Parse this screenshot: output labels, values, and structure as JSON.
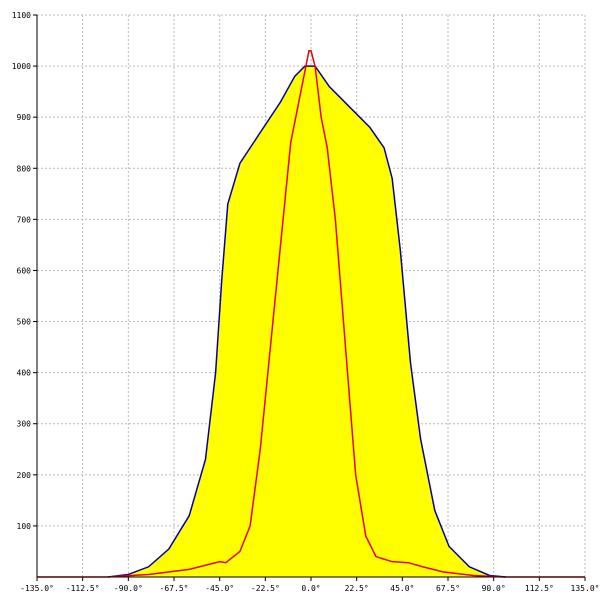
{
  "chart_data": {
    "type": "area-line",
    "xlim": [
      -135,
      135
    ],
    "ylim": [
      0,
      1100
    ],
    "xticks": [
      {
        "value": -135,
        "label": "-135.0°"
      },
      {
        "value": -112.5,
        "label": "-112.5°"
      },
      {
        "value": -90,
        "label": "-90.0°"
      },
      {
        "value": -67.5,
        "label": "-67.5°"
      },
      {
        "value": -45,
        "label": "-45.0°"
      },
      {
        "value": -22.5,
        "label": "-22.5°"
      },
      {
        "value": 0,
        "label": "0.0°"
      },
      {
        "value": 22.5,
        "label": "22.5°"
      },
      {
        "value": 45,
        "label": "45.0°"
      },
      {
        "value": 67.5,
        "label": "67.5°"
      },
      {
        "value": 90,
        "label": "90.0°"
      },
      {
        "value": 112.5,
        "label": "112.5°"
      },
      {
        "value": 135,
        "label": "135.0°"
      }
    ],
    "yticks": [
      100,
      200,
      300,
      400,
      500,
      600,
      700,
      800,
      900,
      1000,
      1100
    ],
    "grid": true,
    "series": [
      {
        "kind": "area",
        "color": "#0000aa",
        "fill": "#ffff00",
        "x": [
          -100,
          -90,
          -80,
          -70,
          -60,
          -52,
          -47,
          -44,
          -41,
          -35,
          -25,
          -15,
          -8,
          -3,
          2,
          9,
          19,
          29,
          36,
          40,
          44,
          49,
          54,
          61,
          68,
          78,
          88,
          96
        ],
        "values": [
          0,
          5,
          20,
          55,
          120,
          230,
          400,
          580,
          730,
          810,
          870,
          930,
          980,
          1000,
          1000,
          960,
          920,
          880,
          840,
          780,
          640,
          420,
          270,
          130,
          60,
          20,
          3,
          0
        ]
      },
      {
        "kind": "line",
        "color": "#ee0000",
        "x": [
          -135,
          -100,
          -80,
          -60,
          -50,
          -45,
          -42,
          -35,
          -30,
          -25,
          -20,
          -15,
          -10,
          -5,
          -1,
          0,
          2,
          5,
          8,
          12,
          15,
          18,
          22,
          27,
          32,
          40,
          48,
          55,
          65,
          80,
          95,
          135
        ],
        "values": [
          0,
          0,
          5,
          15,
          25,
          30,
          28,
          50,
          100,
          250,
          450,
          650,
          850,
          950,
          1030,
          1030,
          1000,
          900,
          840,
          700,
          550,
          400,
          200,
          80,
          40,
          30,
          28,
          20,
          10,
          3,
          0,
          0
        ]
      }
    ]
  }
}
